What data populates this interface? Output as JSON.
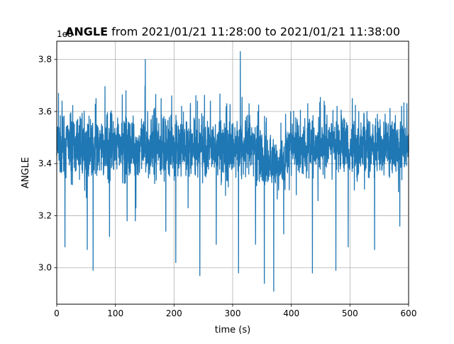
{
  "chart_data": {
    "type": "line",
    "title_bold": "ANGLE",
    "title_rest": " from 2021/01/21 11:28:00 to 2021/01/21 11:38:00",
    "xlabel": "time (s)",
    "ylabel": "ANGLE",
    "y_offset_label": "1e8",
    "xlim": [
      0,
      600
    ],
    "ylim": [
      2.86,
      3.87
    ],
    "x_ticks": [
      0,
      100,
      200,
      300,
      400,
      500,
      600
    ],
    "x_tick_labels": [
      "0",
      "100",
      "200",
      "300",
      "400",
      "500",
      "600"
    ],
    "y_ticks": [
      3.0,
      3.2,
      3.4,
      3.6,
      3.8
    ],
    "y_tick_labels": [
      "3.0",
      "3.2",
      "3.4",
      "3.6",
      "3.8"
    ],
    "grid": true,
    "line_color": "#1f77b4",
    "band_segments": [
      {
        "x_start": 0,
        "x_end": 350,
        "low": 3.36,
        "high": 3.56
      },
      {
        "x_start": 350,
        "x_end": 390,
        "low": 3.31,
        "high": 3.49
      },
      {
        "x_start": 390,
        "x_end": 600,
        "low": 3.37,
        "high": 3.56
      }
    ],
    "spikes": [
      {
        "x": 3,
        "y": 3.67
      },
      {
        "x": 14,
        "y": 3.6
      },
      {
        "x": 23,
        "y": 3.59
      },
      {
        "x": 52,
        "y": 3.73
      },
      {
        "x": 67,
        "y": 3.65
      },
      {
        "x": 94,
        "y": 3.59
      },
      {
        "x": 118,
        "y": 3.68
      },
      {
        "x": 151,
        "y": 3.8
      },
      {
        "x": 155,
        "y": 3.6
      },
      {
        "x": 178,
        "y": 3.65
      },
      {
        "x": 196,
        "y": 3.66
      },
      {
        "x": 213,
        "y": 3.62
      },
      {
        "x": 240,
        "y": 3.64
      },
      {
        "x": 262,
        "y": 3.64
      },
      {
        "x": 290,
        "y": 3.63
      },
      {
        "x": 313,
        "y": 3.83
      },
      {
        "x": 328,
        "y": 3.63
      },
      {
        "x": 343,
        "y": 3.6
      },
      {
        "x": 399,
        "y": 3.6
      },
      {
        "x": 410,
        "y": 3.57
      },
      {
        "x": 428,
        "y": 3.63
      },
      {
        "x": 456,
        "y": 3.64
      },
      {
        "x": 478,
        "y": 3.62
      },
      {
        "x": 504,
        "y": 3.65
      },
      {
        "x": 515,
        "y": 3.6
      },
      {
        "x": 529,
        "y": 3.6
      },
      {
        "x": 560,
        "y": 3.59
      },
      {
        "x": 588,
        "y": 3.62
      },
      {
        "x": 597,
        "y": 3.63
      },
      {
        "x": 14,
        "y": 3.08
      },
      {
        "x": 52,
        "y": 3.07
      },
      {
        "x": 62,
        "y": 2.99
      },
      {
        "x": 90,
        "y": 3.12
      },
      {
        "x": 120,
        "y": 3.18
      },
      {
        "x": 134,
        "y": 3.18
      },
      {
        "x": 186,
        "y": 3.14
      },
      {
        "x": 203,
        "y": 3.02
      },
      {
        "x": 224,
        "y": 3.23
      },
      {
        "x": 244,
        "y": 2.97
      },
      {
        "x": 272,
        "y": 3.09
      },
      {
        "x": 310,
        "y": 2.98
      },
      {
        "x": 339,
        "y": 3.09
      },
      {
        "x": 354,
        "y": 2.94
      },
      {
        "x": 370,
        "y": 2.91
      },
      {
        "x": 387,
        "y": 3.13
      },
      {
        "x": 436,
        "y": 2.98
      },
      {
        "x": 476,
        "y": 2.99
      },
      {
        "x": 497,
        "y": 3.08
      },
      {
        "x": 542,
        "y": 3.07
      },
      {
        "x": 585,
        "y": 3.16
      }
    ]
  }
}
